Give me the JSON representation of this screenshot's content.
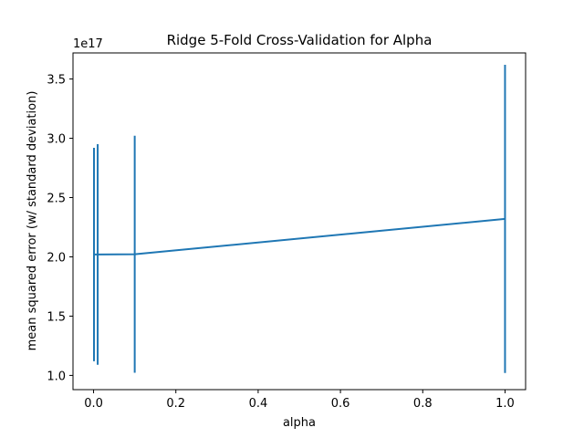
{
  "chart_data": {
    "type": "line",
    "title": "Ridge 5-Fold Cross-Validation for Alpha",
    "xlabel": "alpha",
    "ylabel": "mean squared error (w/ standard deviation)",
    "y_offset_label": "1e17",
    "x": [
      0.001,
      0.01,
      0.1,
      1.0
    ],
    "y": [
      2.02,
      2.02,
      2.022,
      2.32
    ],
    "yerr": [
      0.9,
      0.93,
      1.0,
      1.3
    ],
    "xlim": [
      -0.05,
      1.05
    ],
    "ylim": [
      0.88,
      3.72
    ],
    "xticks": [
      0.0,
      0.2,
      0.4,
      0.6,
      0.8,
      1.0
    ],
    "xtick_labels": [
      "0.0",
      "0.2",
      "0.4",
      "0.6",
      "0.8",
      "1.0"
    ],
    "yticks": [
      1.0,
      1.5,
      2.0,
      2.5,
      3.0,
      3.5
    ],
    "ytick_labels": [
      "1.0",
      "1.5",
      "2.0",
      "2.5",
      "3.0",
      "3.5"
    ],
    "grid": false,
    "line_color": "#1f77b4"
  }
}
